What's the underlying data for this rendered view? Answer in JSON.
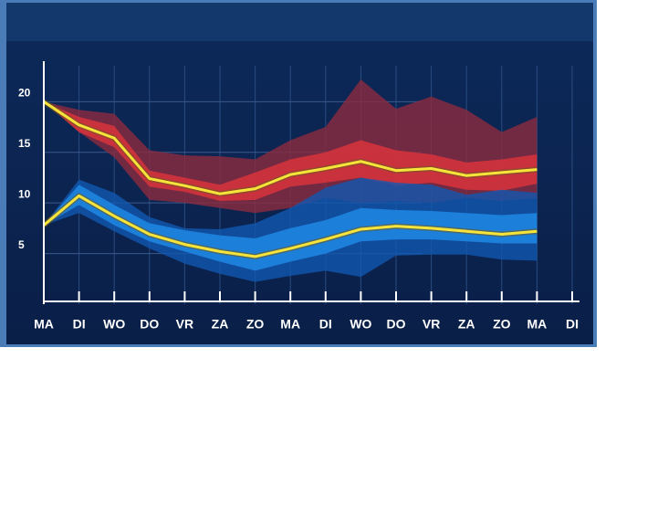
{
  "chart_data": {
    "type": "plume",
    "categories": [
      "MA",
      "DI",
      "WO",
      "DO",
      "VR",
      "ZA",
      "ZO",
      "MA",
      "DI",
      "WO",
      "DO",
      "VR",
      "ZA",
      "ZO",
      "MA",
      "DI"
    ],
    "ylim": [
      0,
      24
    ],
    "yticks": [
      5,
      10,
      15,
      20
    ],
    "grid": true,
    "bands": [
      {
        "color": "#8c2a3e",
        "upper": [
          20,
          19.2,
          18.8,
          15.2,
          14.7,
          14.6,
          14.3,
          16.2,
          17.5,
          22.2,
          19.3,
          20.5,
          19.2,
          17.0,
          18.5
        ],
        "lower": [
          20,
          17,
          14.5,
          10.3,
          10,
          9.5,
          9.0,
          9.5,
          10.5,
          10.0,
          10.2,
          10.0,
          10.5,
          10.2,
          10.5
        ]
      },
      {
        "color": "#d8323c",
        "upper": [
          20,
          18.5,
          17.6,
          13.2,
          12.5,
          11.8,
          13.0,
          14.3,
          15.0,
          16.2,
          15.2,
          14.8,
          14.0,
          14.3,
          14.8
        ],
        "lower": [
          20,
          17,
          15.5,
          11.6,
          11.1,
          10.2,
          10.3,
          11.6,
          12.0,
          12.5,
          11.7,
          12.0,
          11.3,
          11.2,
          11.9
        ]
      },
      {
        "color": "#1258b0",
        "upper": [
          7.8,
          12.3,
          11.0,
          8.6,
          7.5,
          7.4,
          8.0,
          9.5,
          11.5,
          12.5,
          12.0,
          11.8,
          10.8,
          11.3,
          11.0
        ],
        "lower": [
          7.8,
          9.0,
          7.2,
          5.5,
          4.0,
          3.0,
          2.2,
          2.8,
          3.3,
          2.7,
          4.8,
          4.9,
          4.9,
          4.4,
          4.3
        ]
      },
      {
        "color": "#1f88e4",
        "upper": [
          7.8,
          11.8,
          9.8,
          8.0,
          7.3,
          6.8,
          6.5,
          7.5,
          8.3,
          9.5,
          9.3,
          9.2,
          9.0,
          8.8,
          9.0
        ],
        "lower": [
          7.8,
          9.8,
          7.8,
          6.2,
          5.2,
          4.2,
          3.3,
          4.2,
          5.0,
          6.2,
          6.4,
          6.4,
          6.2,
          6.0,
          6.0
        ]
      }
    ],
    "lines": [
      {
        "color": "#f7e43a",
        "values": [
          20,
          17.7,
          16.4,
          12.4,
          11.7,
          10.9,
          11.4,
          12.8,
          13.4,
          14.1,
          13.2,
          13.4,
          12.7,
          13.0,
          13.3,
          null
        ]
      },
      {
        "color": "#f7e43a",
        "values": [
          7.8,
          10.7,
          8.7,
          6.9,
          5.9,
          5.2,
          4.7,
          5.5,
          6.4,
          7.4,
          7.7,
          7.5,
          7.2,
          6.9,
          7.2,
          null
        ]
      }
    ]
  }
}
